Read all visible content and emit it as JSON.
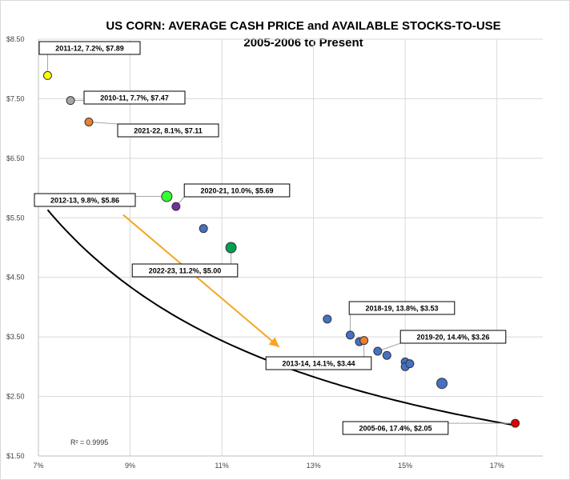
{
  "chart_data": {
    "type": "scatter",
    "title": "US CORN: AVERAGE CASH PRICE and AVAILABLE STOCKS-TO-USE",
    "subtitle": "2005-2006 to Present",
    "xlabel": "",
    "ylabel": "",
    "xlim": [
      7,
      18
    ],
    "ylim": [
      1.5,
      8.5
    ],
    "grid": true,
    "x_ticks": [
      7,
      9,
      11,
      13,
      15,
      17
    ],
    "x_tick_labels": [
      "7%",
      "9%",
      "11%",
      "13%",
      "15%",
      "17%"
    ],
    "y_ticks": [
      1.5,
      2.5,
      3.5,
      4.5,
      5.5,
      6.5,
      7.5,
      8.5
    ],
    "y_tick_labels": [
      "$1.50",
      "$2.50",
      "$3.50",
      "$4.50",
      "$5.50",
      "$6.50",
      "$7.50",
      "$8.50"
    ],
    "r_squared_label": "R² = 0.9995",
    "points": [
      {
        "x": 7.2,
        "y": 7.89,
        "color": "#ffff00",
        "size": "small",
        "label": "2011-12, 7.2%, $7.89"
      },
      {
        "x": 7.7,
        "y": 7.47,
        "color": "#a6a6a6",
        "size": "small",
        "label": "2010-11, 7.7%, $7.47"
      },
      {
        "x": 8.1,
        "y": 7.11,
        "color": "#ed7d31",
        "size": "small",
        "label": "2021-22, 8.1%, $7.11"
      },
      {
        "x": 9.8,
        "y": 5.86,
        "color": "#33ff33",
        "size": "large",
        "label": "2012-13, 9.8%, $5.86"
      },
      {
        "x": 10.0,
        "y": 5.69,
        "color": "#7030a0",
        "size": "small",
        "label": "2020-21, 10.0%, $5.69"
      },
      {
        "x": 10.6,
        "y": 5.32,
        "color": "#4472c4",
        "size": "small",
        "label": ""
      },
      {
        "x": 11.2,
        "y": 5.0,
        "color": "#00a050",
        "size": "large",
        "label": "2022-23, 11.2%, $5.00"
      },
      {
        "x": 13.3,
        "y": 3.8,
        "color": "#4472c4",
        "size": "small",
        "label": ""
      },
      {
        "x": 13.8,
        "y": 3.53,
        "color": "#4472c4",
        "size": "small",
        "label": "2018-19, 13.8%, $3.53"
      },
      {
        "x": 14.0,
        "y": 3.42,
        "color": "#4472c4",
        "size": "small",
        "label": ""
      },
      {
        "x": 14.1,
        "y": 3.44,
        "color": "#ed7d31",
        "size": "small",
        "label": "2013-14, 14.1%, $3.44"
      },
      {
        "x": 14.4,
        "y": 3.26,
        "color": "#4472c4",
        "size": "small",
        "label": "2019-20, 14.4%, $3.26"
      },
      {
        "x": 14.6,
        "y": 3.19,
        "color": "#4472c4",
        "size": "small",
        "label": ""
      },
      {
        "x": 15.0,
        "y": 3.08,
        "color": "#4472c4",
        "size": "small",
        "label": ""
      },
      {
        "x": 15.0,
        "y": 3.0,
        "color": "#4472c4",
        "size": "small",
        "label": ""
      },
      {
        "x": 15.1,
        "y": 3.05,
        "color": "#4472c4",
        "size": "small",
        "label": ""
      },
      {
        "x": 15.8,
        "y": 2.72,
        "color": "#4472c4",
        "size": "large",
        "label": ""
      },
      {
        "x": 17.4,
        "y": 2.05,
        "color": "#e00000",
        "size": "small",
        "label": "2005-06, 17.4%, $2.05"
      }
    ],
    "trendline": {
      "type": "power",
      "a": 56.3,
      "b": -1.166
    },
    "annotation_arrow": {
      "from": [
        8.85,
        5.55
      ],
      "to": [
        12.25,
        3.33
      ],
      "color": "#f5a623"
    }
  }
}
